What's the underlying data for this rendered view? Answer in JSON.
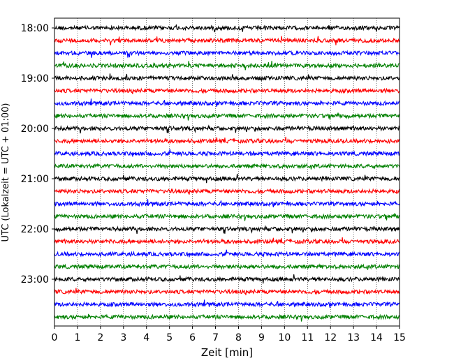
{
  "chart_data": {
    "type": "line",
    "title": "",
    "xlabel": "Zeit  [min]",
    "ylabel": "UTC (Lokalzeit = UTC + 01:00)",
    "xlim": [
      0,
      15
    ],
    "x_ticks": [
      "0",
      "1",
      "2",
      "3",
      "4",
      "5",
      "6",
      "7",
      "8",
      "9",
      "10",
      "11",
      "12",
      "13",
      "14",
      "15"
    ],
    "y_ticks": [
      "18:00",
      "19:00",
      "20:00",
      "21:00",
      "22:00",
      "23:00"
    ],
    "grid": "vertical dotted at each minute",
    "row_interval_minutes": 15,
    "start_time": "18:00",
    "rows": 24,
    "color_cycle": [
      "#000000",
      "#ff0000",
      "#0000ff",
      "#008000"
    ]
  }
}
